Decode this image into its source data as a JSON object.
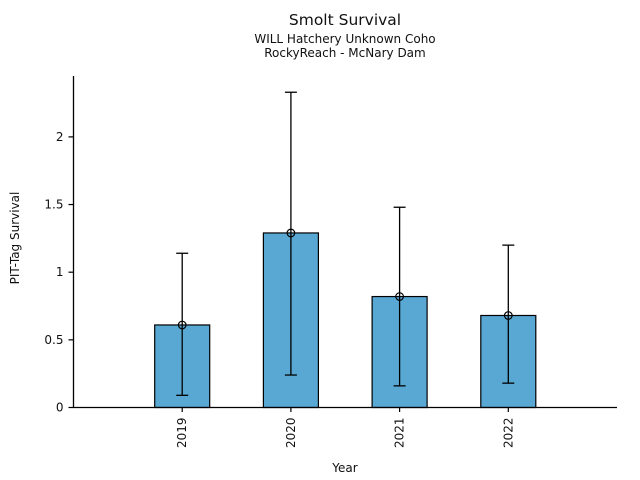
{
  "chart_data": {
    "type": "bar",
    "title": "Smolt Survival",
    "subtitle": [
      "WILL Hatchery Unknown Coho",
      "RockyReach - McNary Dam"
    ],
    "xlabel": "Year",
    "ylabel": "PIT-Tag Survival",
    "categories": [
      "2019",
      "2020",
      "2021",
      "2022"
    ],
    "values": [
      0.61,
      1.29,
      0.82,
      0.68
    ],
    "error_low": [
      0.09,
      0.24,
      0.16,
      0.18
    ],
    "error_high": [
      1.14,
      2.33,
      1.48,
      1.2
    ],
    "yticks": [
      0,
      0.5,
      1,
      1.5,
      2
    ],
    "ytick_labels": [
      "0",
      "0.5",
      "1",
      "1.5",
      "2"
    ],
    "ylim": [
      0,
      2.45
    ],
    "bar_color": "#58A8D3",
    "edge_color": "#000000",
    "marker": "open-circle",
    "grid": false,
    "legend": null
  }
}
